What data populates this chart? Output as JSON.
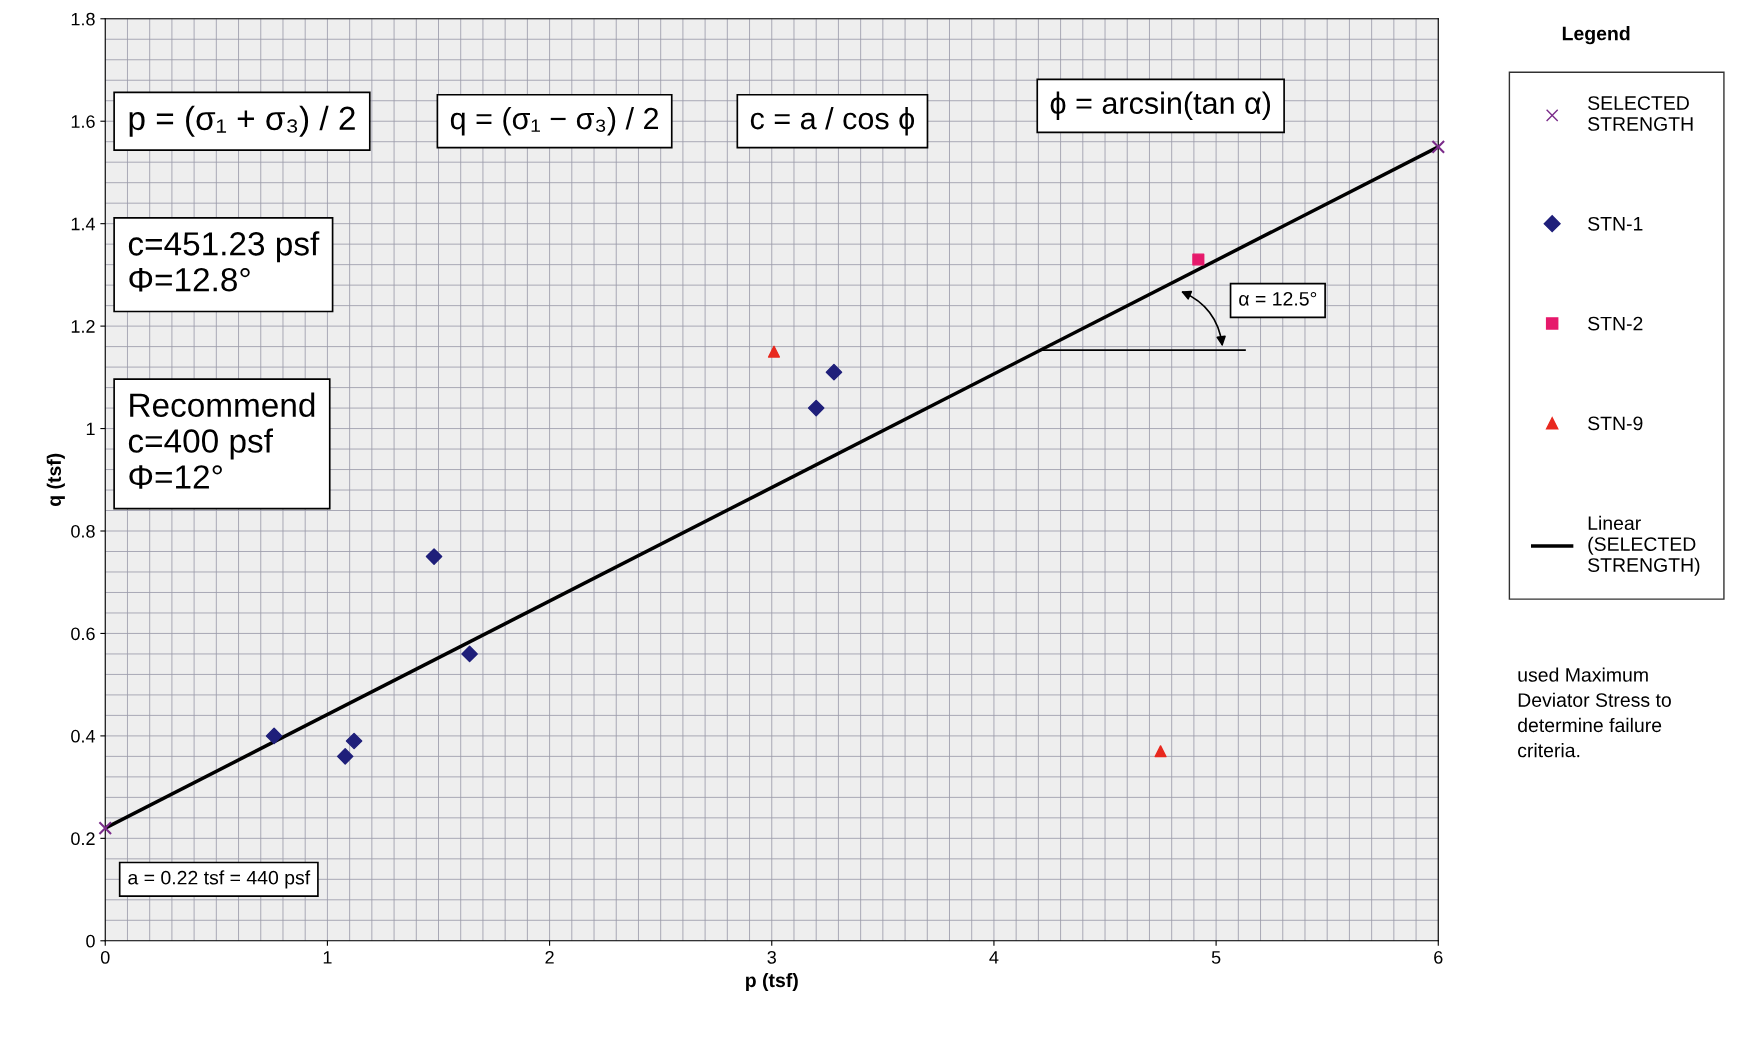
{
  "chart_data": {
    "type": "scatter",
    "xlabel": "p (tsf)",
    "ylabel": "q (tsf)",
    "legend_title": "Legend",
    "legend": "right",
    "grid": true,
    "xlim": [
      0,
      6
    ],
    "ylim": [
      0,
      1.8
    ],
    "xticks": [
      0,
      1,
      2,
      3,
      4,
      5,
      6
    ],
    "yticks": [
      0,
      0.2,
      0.4,
      0.6,
      0.8,
      1,
      1.2,
      1.4,
      1.6,
      1.8
    ],
    "series": [
      {
        "name": "SELECTED STRENGTH",
        "marker": "cross",
        "color": "#7b2c8a",
        "x": [
          0,
          6
        ],
        "values": [
          0.22,
          1.55
        ]
      },
      {
        "name": "STN-1",
        "marker": "diamond",
        "color": "#1f1f7a",
        "x": [
          0.76,
          1.08,
          1.12,
          1.48,
          1.64,
          3.2,
          3.28
        ],
        "values": [
          0.4,
          0.36,
          0.39,
          0.75,
          0.56,
          1.04,
          1.11
        ]
      },
      {
        "name": "STN-2",
        "marker": "square",
        "color": "#e6196b",
        "x": [
          4.92
        ],
        "values": [
          1.33
        ]
      },
      {
        "name": "STN-9",
        "marker": "triangle",
        "color": "#e8281e",
        "x": [
          3.01,
          4.75
        ],
        "values": [
          1.15,
          0.37
        ]
      },
      {
        "name": "Linear (SELECTED STRENGTH)",
        "type": "line",
        "marker": "none",
        "line_style": "solid",
        "color": "#000000",
        "x": [
          0,
          6
        ],
        "values": [
          0.22,
          1.55
        ]
      }
    ],
    "annotations": [
      "p = (σ₁ + σ₃) / 2",
      "q = (σ₁ − σ₃) / 2",
      "c = a / cos ϕ",
      "ϕ = arcsin(tan α)",
      "c=451.23 psf\nΦ=12.8°",
      "Recommend\nc=400 psf\nΦ=12°",
      "α = 12.5°",
      "a = 0.22 tsf = 440 psf",
      "used Maximum\nDeviator Stress to\ndetermine failure\ncriteria."
    ]
  }
}
